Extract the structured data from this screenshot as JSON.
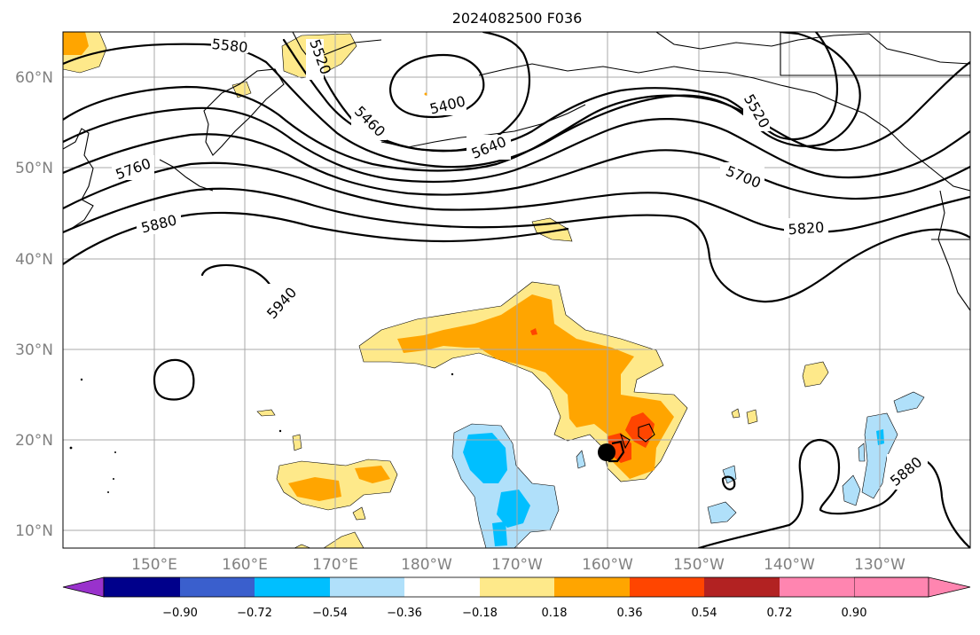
{
  "title": "2024082500 F036",
  "lat_labels": [
    "60°N",
    "50°N",
    "40°N",
    "30°N",
    "20°N",
    "10°N"
  ],
  "lon_labels": [
    "150°E",
    "160°E",
    "170°E",
    "180°W",
    "170°W",
    "160°W",
    "150°W",
    "140°W",
    "130°W"
  ],
  "contour_labels": [
    "5580",
    "5520",
    "5400",
    "5460",
    "5640",
    "5520",
    "5760",
    "5700",
    "5880",
    "5820",
    "5940",
    "5880"
  ],
  "colorbar": {
    "ticks": [
      "−0.90",
      "−0.72",
      "−0.54",
      "−0.36",
      "−0.18",
      "0.18",
      "0.36",
      "0.54",
      "0.72",
      "0.90"
    ],
    "colors": [
      "#9932cc",
      "#00008b",
      "#3a5fcd",
      "#00bfff",
      "#b0e0fa",
      "#ffffff",
      "#fee98a",
      "#ffa500",
      "#ff4500",
      "#b22222",
      "#ff85b0"
    ]
  }
}
